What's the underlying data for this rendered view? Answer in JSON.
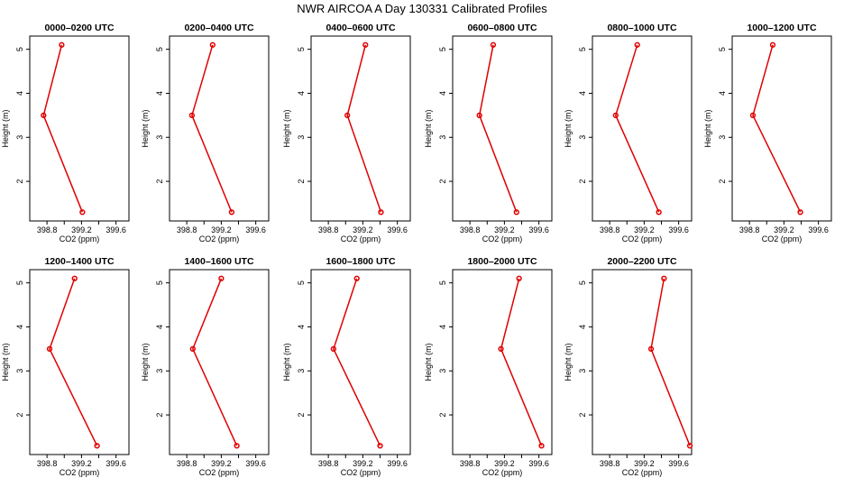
{
  "title": "NWR AIRCOA A  Day 130331  Calibrated Profiles",
  "series_color": "#e00000",
  "chart_data": [
    {
      "type": "line",
      "title": "0000–0200 UTC",
      "xlabel": "CO2 (ppm)",
      "ylabel": "Height (m)",
      "xlim": [
        398.6,
        399.75
      ],
      "ylim": [
        1.1,
        5.3
      ],
      "xticks": [
        398.8,
        399.2,
        399.6
      ],
      "xticklabels": [
        "398.8",
        "399.2",
        "399.6"
      ],
      "yticks": [
        2,
        3,
        4,
        5
      ],
      "yticklabels": [
        "2",
        "3",
        "4",
        "5"
      ],
      "co2": [
        398.97,
        398.76,
        399.21
      ],
      "height": [
        5.1,
        3.5,
        1.3
      ]
    },
    {
      "type": "line",
      "title": "0200–0400 UTC",
      "xlabel": "CO2 (ppm)",
      "ylabel": "Height (m)",
      "xlim": [
        398.6,
        399.75
      ],
      "ylim": [
        1.1,
        5.3
      ],
      "xticks": [
        398.8,
        399.2,
        399.6
      ],
      "xticklabels": [
        "398.8",
        "399.2",
        "399.6"
      ],
      "yticks": [
        2,
        3,
        4,
        5
      ],
      "yticklabels": [
        "2",
        "3",
        "4",
        "5"
      ],
      "co2": [
        399.1,
        398.86,
        399.32
      ],
      "height": [
        5.1,
        3.5,
        1.3
      ]
    },
    {
      "type": "line",
      "title": "0400–0600 UTC",
      "xlabel": "CO2 (ppm)",
      "ylabel": "Height (m)",
      "xlim": [
        398.6,
        399.75
      ],
      "ylim": [
        1.1,
        5.3
      ],
      "xticks": [
        398.8,
        399.2,
        399.6
      ],
      "xticklabels": [
        "398.8",
        "399.2",
        "399.6"
      ],
      "yticks": [
        2,
        3,
        4,
        5
      ],
      "yticklabels": [
        "2",
        "3",
        "4",
        "5"
      ],
      "co2": [
        399.23,
        399.02,
        399.41
      ],
      "height": [
        5.1,
        3.5,
        1.3
      ]
    },
    {
      "type": "line",
      "title": "0600–0800 UTC",
      "xlabel": "CO2 (ppm)",
      "ylabel": "Height (m)",
      "xlim": [
        398.6,
        399.75
      ],
      "ylim": [
        1.1,
        5.3
      ],
      "xticks": [
        398.8,
        399.2,
        399.6
      ],
      "xticklabels": [
        "398.8",
        "399.2",
        "399.6"
      ],
      "yticks": [
        2,
        3,
        4,
        5
      ],
      "yticklabels": [
        "2",
        "3",
        "4",
        "5"
      ],
      "co2": [
        399.07,
        398.91,
        399.34
      ],
      "height": [
        5.1,
        3.5,
        1.3
      ]
    },
    {
      "type": "line",
      "title": "0800–1000 UTC",
      "xlabel": "CO2 (ppm)",
      "ylabel": "Height (m)",
      "xlim": [
        398.6,
        399.75
      ],
      "ylim": [
        1.1,
        5.3
      ],
      "xticks": [
        398.8,
        399.2,
        399.6
      ],
      "xticklabels": [
        "398.8",
        "399.2",
        "399.6"
      ],
      "yticks": [
        2,
        3,
        4,
        5
      ],
      "yticklabels": [
        "2",
        "3",
        "4",
        "5"
      ],
      "co2": [
        399.12,
        398.87,
        399.37
      ],
      "height": [
        5.1,
        3.5,
        1.3
      ]
    },
    {
      "type": "line",
      "title": "1000–1200 UTC",
      "xlabel": "CO2 (ppm)",
      "ylabel": "Height (m)",
      "xlim": [
        398.6,
        399.75
      ],
      "ylim": [
        1.1,
        5.3
      ],
      "xticks": [
        398.8,
        399.2,
        399.6
      ],
      "xticklabels": [
        "398.8",
        "399.2",
        "399.6"
      ],
      "yticks": [
        2,
        3,
        4,
        5
      ],
      "yticklabels": [
        "2",
        "3",
        "4",
        "5"
      ],
      "co2": [
        399.07,
        398.84,
        399.39
      ],
      "height": [
        5.1,
        3.5,
        1.3
      ]
    },
    {
      "type": "line",
      "title": "1200–1400 UTC",
      "xlabel": "CO2 (ppm)",
      "ylabel": "Height (m)",
      "xlim": [
        398.6,
        399.75
      ],
      "ylim": [
        1.1,
        5.3
      ],
      "xticks": [
        398.8,
        399.2,
        399.6
      ],
      "xticklabels": [
        "398.8",
        "399.2",
        "399.6"
      ],
      "yticks": [
        2,
        3,
        4,
        5
      ],
      "yticklabels": [
        "2",
        "3",
        "4",
        "5"
      ],
      "co2": [
        399.12,
        398.83,
        399.38
      ],
      "height": [
        5.1,
        3.5,
        1.3
      ]
    },
    {
      "type": "line",
      "title": "1400–1600 UTC",
      "xlabel": "CO2 (ppm)",
      "ylabel": "Height (m)",
      "xlim": [
        398.6,
        399.75
      ],
      "ylim": [
        1.1,
        5.3
      ],
      "xticks": [
        398.8,
        399.2,
        399.6
      ],
      "xticklabels": [
        "398.8",
        "399.2",
        "399.6"
      ],
      "yticks": [
        2,
        3,
        4,
        5
      ],
      "yticklabels": [
        "2",
        "3",
        "4",
        "5"
      ],
      "co2": [
        399.2,
        398.87,
        399.38
      ],
      "height": [
        5.1,
        3.5,
        1.3
      ]
    },
    {
      "type": "line",
      "title": "1600–1800 UTC",
      "xlabel": "CO2 (ppm)",
      "ylabel": "Height (m)",
      "xlim": [
        398.6,
        399.75
      ],
      "ylim": [
        1.1,
        5.3
      ],
      "xticks": [
        398.8,
        399.2,
        399.6
      ],
      "xticklabels": [
        "398.8",
        "399.2",
        "399.6"
      ],
      "yticks": [
        2,
        3,
        4,
        5
      ],
      "yticklabels": [
        "2",
        "3",
        "4",
        "5"
      ],
      "co2": [
        399.13,
        398.86,
        399.4
      ],
      "height": [
        5.1,
        3.5,
        1.3
      ]
    },
    {
      "type": "line",
      "title": "1800–2000 UTC",
      "xlabel": "CO2 (ppm)",
      "ylabel": "Height (m)",
      "xlim": [
        398.6,
        399.75
      ],
      "ylim": [
        1.1,
        5.3
      ],
      "xticks": [
        398.8,
        399.2,
        399.6
      ],
      "xticklabels": [
        "398.8",
        "399.2",
        "399.6"
      ],
      "yticks": [
        2,
        3,
        4,
        5
      ],
      "yticklabels": [
        "2",
        "3",
        "4",
        "5"
      ],
      "co2": [
        399.37,
        399.16,
        399.63
      ],
      "height": [
        5.1,
        3.5,
        1.3
      ]
    },
    {
      "type": "line",
      "title": "2000–2200 UTC",
      "xlabel": "CO2 (ppm)",
      "ylabel": "Height (m)",
      "xlim": [
        398.6,
        399.75
      ],
      "ylim": [
        1.1,
        5.3
      ],
      "xticks": [
        398.8,
        399.2,
        399.6
      ],
      "xticklabels": [
        "398.8",
        "399.2",
        "399.6"
      ],
      "yticks": [
        2,
        3,
        4,
        5
      ],
      "yticklabels": [
        "2",
        "3",
        "4",
        "5"
      ],
      "co2": [
        399.43,
        399.28,
        399.73
      ],
      "height": [
        5.1,
        3.5,
        1.3
      ]
    }
  ]
}
